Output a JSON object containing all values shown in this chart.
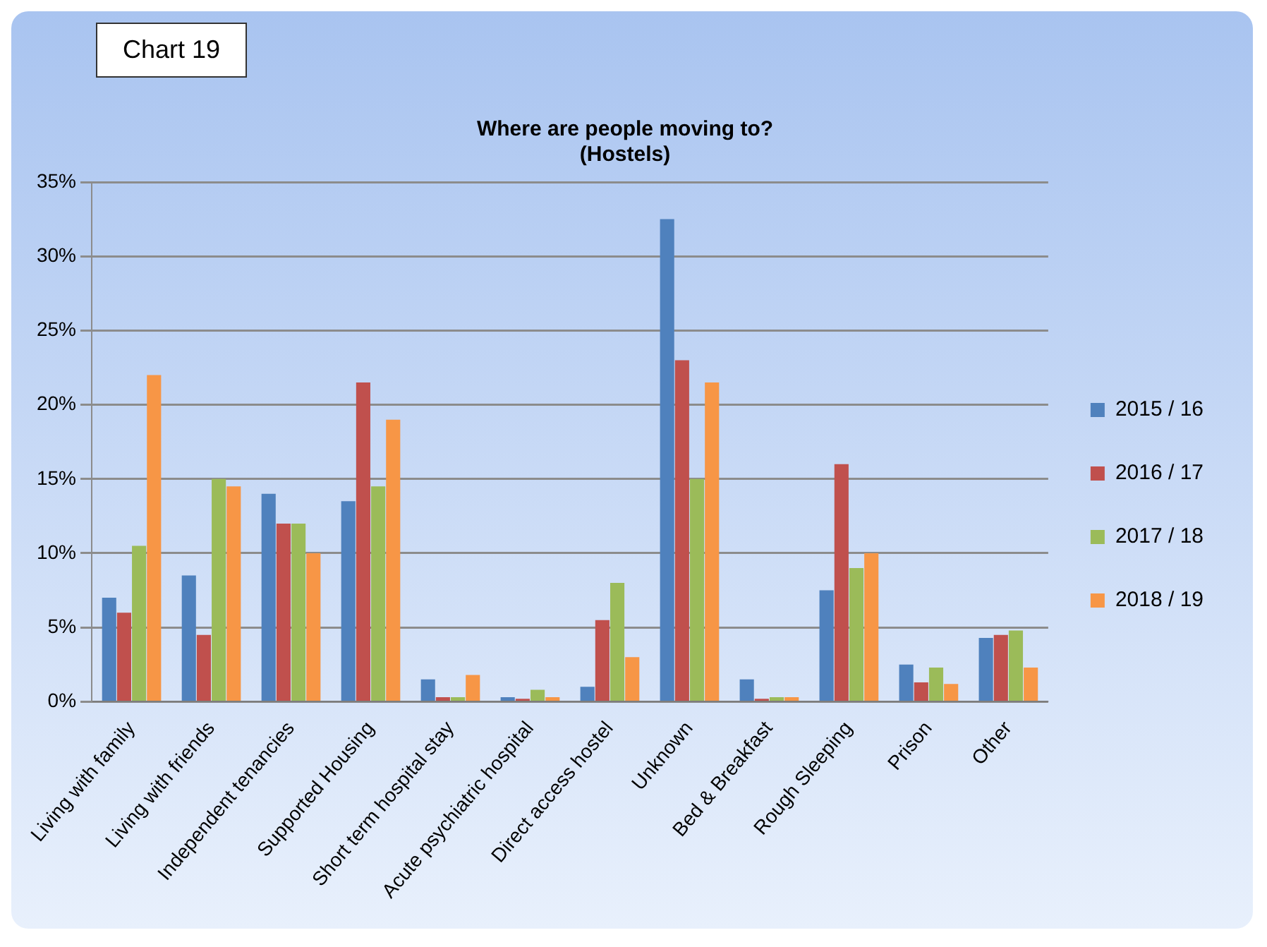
{
  "chart_data": {
    "type": "bar",
    "title": [
      "Where are people moving to?",
      "(Hostels)"
    ],
    "annotations": [
      "Chart 19"
    ],
    "categories": [
      "Living with family",
      "Living with friends",
      "Independent tenancies",
      "Supported Housing",
      "Short term hospital stay",
      "Acute psychiatric hospital",
      "Direct access hostel",
      "Unknown",
      "Bed & Breakfast",
      "Rough Sleeping",
      "Prison",
      "Other"
    ],
    "series": [
      {
        "name": "2015 / 16",
        "color": "#4f81bd",
        "values": [
          7,
          8.5,
          14,
          13.5,
          1.5,
          0.3,
          1,
          32.5,
          1.5,
          7.5,
          2.5,
          4.3
        ]
      },
      {
        "name": "2016 / 17",
        "color": "#c0504d",
        "values": [
          6,
          4.5,
          12,
          21.5,
          0.3,
          0.2,
          5.5,
          23,
          0.2,
          16,
          1.3,
          4.5
        ]
      },
      {
        "name": "2017 / 18",
        "color": "#9bbb59",
        "values": [
          10.5,
          15,
          12,
          14.5,
          0.3,
          0.8,
          8,
          15,
          0.3,
          9,
          2.3,
          4.8
        ]
      },
      {
        "name": "2018 / 19",
        "color": "#f79646",
        "values": [
          22,
          14.5,
          10,
          19,
          1.8,
          0.3,
          3,
          21.5,
          0.3,
          10,
          1.2,
          2.3
        ]
      }
    ],
    "ylim": [
      0,
      35
    ],
    "yticks": [
      {
        "value": 0,
        "label": "0%"
      },
      {
        "value": 5,
        "label": "5%"
      },
      {
        "value": 10,
        "label": "10%"
      },
      {
        "value": 15,
        "label": "15%"
      },
      {
        "value": 20,
        "label": "20%"
      },
      {
        "value": 25,
        "label": "25%"
      },
      {
        "value": 30,
        "label": "30%"
      },
      {
        "value": 35,
        "label": "35%"
      }
    ],
    "grid": "y",
    "legend": "right"
  }
}
